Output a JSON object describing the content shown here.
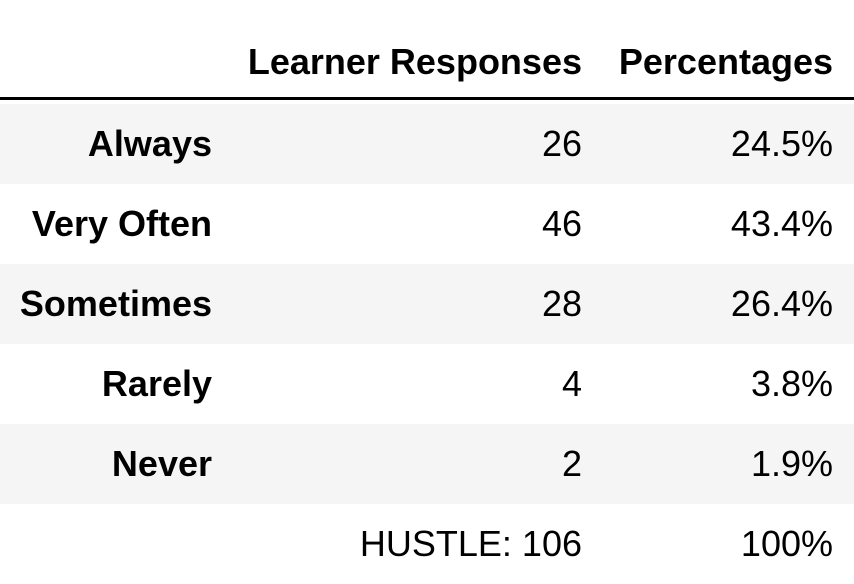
{
  "table": {
    "headers": {
      "responses": "Learner Responses",
      "percentages": "Percentages"
    },
    "rows": [
      {
        "label": "Always",
        "responses": "26",
        "percentage": "24.5%"
      },
      {
        "label": "Very Often",
        "responses": "46",
        "percentage": "43.4%"
      },
      {
        "label": "Sometimes",
        "responses": "28",
        "percentage": "26.4%"
      },
      {
        "label": "Rarely",
        "responses": "4",
        "percentage": "3.8%"
      },
      {
        "label": "Never",
        "responses": "2",
        "percentage": "1.9%"
      }
    ],
    "total": {
      "responses": "HUSTLE: 106",
      "percentage": "100%"
    }
  },
  "colors": {
    "row_shade": "#f5f5f5",
    "rule": "#000000"
  }
}
